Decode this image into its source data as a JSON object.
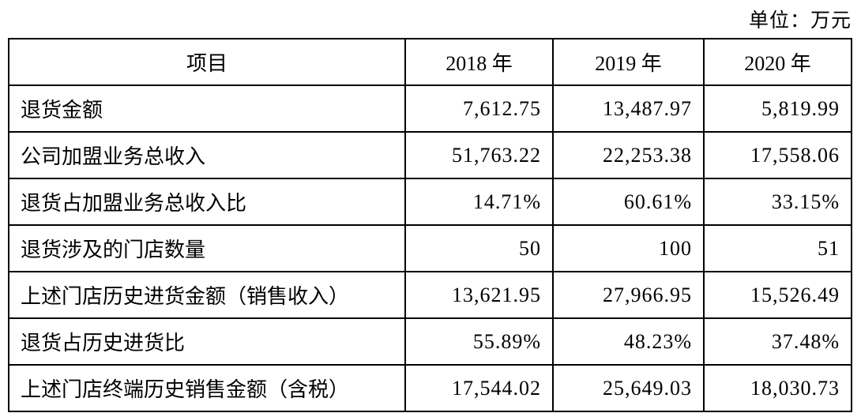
{
  "unit_label": "单位：万元",
  "table": {
    "columns": [
      "项目",
      "2018 年",
      "2019 年",
      "2020 年"
    ],
    "rows": [
      {
        "label": "退货金额",
        "values": [
          "7,612.75",
          "13,487.97",
          "5,819.99"
        ]
      },
      {
        "label": "公司加盟业务总收入",
        "values": [
          "51,763.22",
          "22,253.38",
          "17,558.06"
        ]
      },
      {
        "label": "退货占加盟业务总收入比",
        "values": [
          "14.71%",
          "60.61%",
          "33.15%"
        ]
      },
      {
        "label": "退货涉及的门店数量",
        "values": [
          "50",
          "100",
          "51"
        ]
      },
      {
        "label": "上述门店历史进货金额（销售收入）",
        "values": [
          "13,621.95",
          "27,966.95",
          "15,526.49"
        ]
      },
      {
        "label": "退货占历史进货比",
        "values": [
          "55.89%",
          "48.23%",
          "37.48%"
        ]
      },
      {
        "label": "上述门店终端历史销售金额（含税）",
        "values": [
          "17,544.02",
          "25,649.03",
          "18,030.73"
        ]
      }
    ]
  }
}
